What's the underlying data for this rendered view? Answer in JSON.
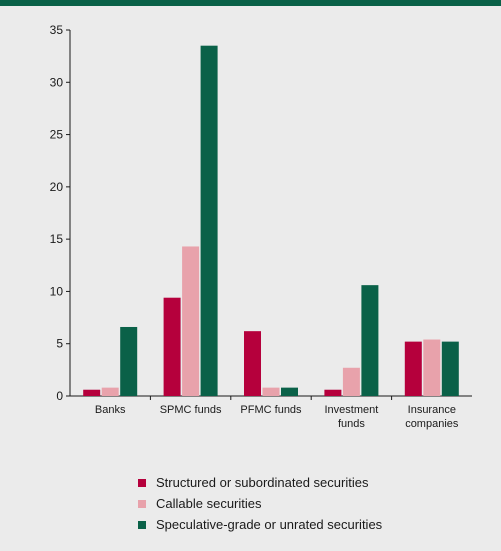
{
  "header": {
    "title": ""
  },
  "chart_data": {
    "type": "bar",
    "title": "",
    "xlabel": "",
    "ylabel": "",
    "ylim": [
      0,
      35
    ],
    "yticks": [
      0,
      5,
      10,
      15,
      20,
      25,
      30,
      35
    ],
    "categories": [
      [
        "Banks"
      ],
      [
        "SPMC funds"
      ],
      [
        "PFMC funds"
      ],
      [
        "Investment",
        "funds"
      ],
      [
        "Insurance",
        "companies"
      ]
    ],
    "series": [
      {
        "name": "Structured or subordinated securities",
        "color": "#b5003c",
        "values": [
          0.6,
          9.4,
          6.2,
          0.6,
          5.2
        ]
      },
      {
        "name": "Callable securities",
        "color": "#e8a2ab",
        "values": [
          0.8,
          14.3,
          0.8,
          2.7,
          5.4
        ]
      },
      {
        "name": "Speculative-grade or unrated securities",
        "color": "#0a6148",
        "values": [
          6.6,
          33.5,
          0.8,
          10.6,
          5.2
        ]
      }
    ],
    "grid": false,
    "legend_position": "bottom"
  }
}
